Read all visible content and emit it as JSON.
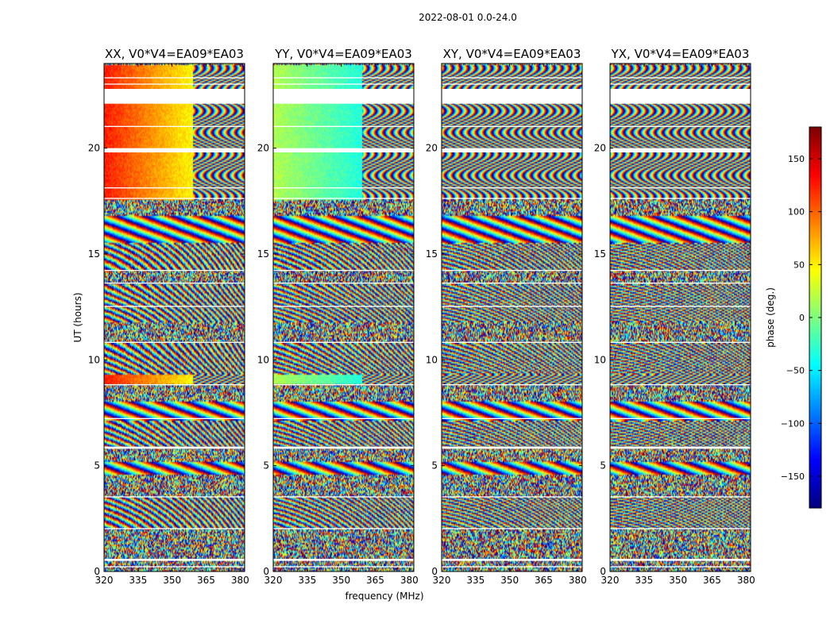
{
  "chart_data": {
    "type": "heatmap",
    "suptitle": "2022-08-01 0.0-24.0",
    "panels": [
      {
        "title": "XX, V0*V4=EA09*EA03"
      },
      {
        "title": "YY, V0*V4=EA09*EA03"
      },
      {
        "title": "XY, V0*V4=EA09*EA03"
      },
      {
        "title": "YX, V0*V4=EA09*EA03"
      }
    ],
    "xlabel": "frequency (MHz)",
    "ylabel": "UT (hours)",
    "xlim": [
      320,
      382
    ],
    "ylim": [
      0,
      24
    ],
    "x_ticks": [
      320,
      335,
      350,
      365,
      380
    ],
    "y_ticks": [
      0,
      5,
      10,
      15,
      20
    ],
    "colorbar": {
      "label": "phase (deg.)",
      "range": [
        -180,
        180
      ],
      "ticks": [
        {
          "value": 150,
          "label": "150"
        },
        {
          "value": 100,
          "label": "100"
        },
        {
          "value": 50,
          "label": "50"
        },
        {
          "value": 0,
          "label": "0"
        },
        {
          "value": -50,
          "label": "−50"
        },
        {
          "value": -100,
          "label": "−100"
        },
        {
          "value": -150,
          "label": "−150"
        }
      ],
      "colormap": "jet"
    },
    "flagged_hours": [
      [
        0.2,
        0.25
      ],
      [
        0.5,
        0.6
      ],
      [
        2.0,
        2.05
      ],
      [
        3.5,
        3.55
      ],
      [
        5.8,
        5.9
      ],
      [
        7.2,
        7.25
      ],
      [
        8.8,
        8.85
      ],
      [
        10.8,
        10.85
      ],
      [
        12.5,
        12.55
      ],
      [
        13.6,
        13.65
      ],
      [
        14.2,
        14.25
      ],
      [
        17.6,
        17.65
      ],
      [
        18.1,
        18.15
      ],
      [
        19.8,
        20.0
      ],
      [
        21.0,
        21.05
      ],
      [
        22.1,
        22.8
      ],
      [
        23.0,
        23.05
      ],
      [
        23.3,
        23.35
      ]
    ]
  }
}
